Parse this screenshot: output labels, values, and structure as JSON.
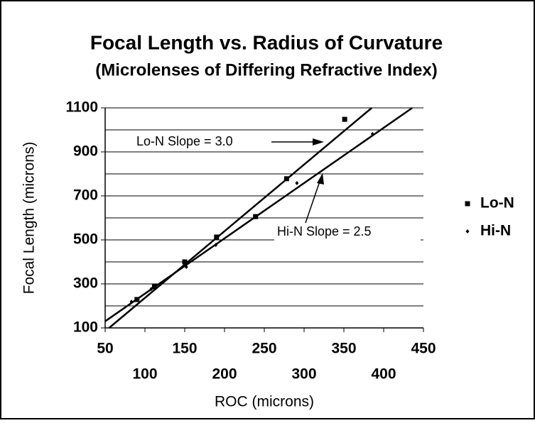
{
  "chart_data": {
    "type": "scatter",
    "title": "Focal Length  vs.  Radius of Curvature",
    "subtitle": "(Microlenses of Differing Refractive Index)",
    "x_label": "ROC (microns)",
    "y_label": "Focal Length (microns)",
    "xlim": [
      50,
      450
    ],
    "xticks": [
      50,
      100,
      150,
      200,
      250,
      300,
      350,
      400,
      450
    ],
    "ylim": [
      100,
      1100
    ],
    "yticks": [
      100,
      300,
      500,
      700,
      900,
      1100
    ],
    "minor_yticks": [
      200,
      400,
      600,
      800,
      1000
    ],
    "grid": true,
    "legend": "right",
    "series": [
      {
        "name": "Lo-N",
        "color": "#000000",
        "marker": "square",
        "x": [
          90,
          112,
          150,
          190,
          239,
          278,
          351
        ],
        "values": [
          229,
          287,
          400,
          513,
          606,
          778,
          1048
        ]
      },
      {
        "name": "Hi-N",
        "color": "#000000",
        "marker": "diamond",
        "x": [
          83,
          108,
          152,
          189,
          238,
          291,
          386
        ],
        "values": [
          219,
          277,
          377,
          477,
          603,
          758,
          981
        ]
      }
    ],
    "fit_lines": [
      {
        "x": [
          55,
          385
        ],
        "y": [
          100,
          1100
        ]
      },
      {
        "x": [
          50,
          436
        ],
        "y": [
          130,
          1100
        ]
      }
    ],
    "annotations": [
      "Lo-N Slope = 3.0",
      "Hi-N Slope = 2.5"
    ]
  }
}
